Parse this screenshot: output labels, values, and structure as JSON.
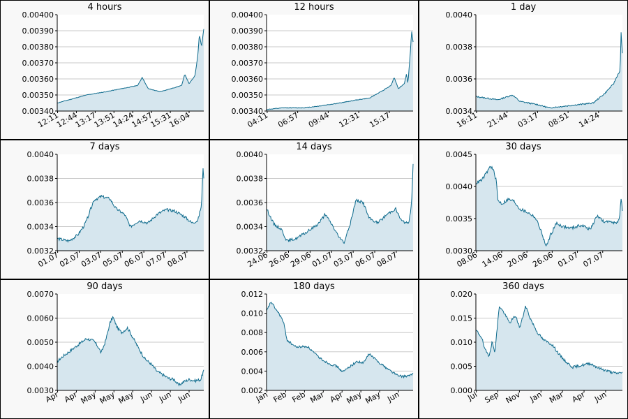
{
  "colors": {
    "line": "#0d6a8c",
    "fill": "#d6e6ee",
    "grid": "#c8c8c8",
    "frame_bg": "#f8f8f8"
  },
  "chart_data": [
    {
      "type": "area",
      "title": "4 hours",
      "ylim": [
        0.0034,
        0.004
      ],
      "yticks": [
        "0.00340",
        "0.00350",
        "0.00360",
        "0.00370",
        "0.00380",
        "0.00390",
        "0.00400"
      ],
      "xticks": [
        "12:11",
        "12:44",
        "13:17",
        "13:51",
        "14:24",
        "14:57",
        "15:31",
        "16:04"
      ],
      "anchors": [
        [
          0,
          0.00345
        ],
        [
          0.08,
          0.00347
        ],
        [
          0.2,
          0.0035
        ],
        [
          0.33,
          0.00352
        ],
        [
          0.5,
          0.00355
        ],
        [
          0.55,
          0.00356
        ],
        [
          0.58,
          0.00361
        ],
        [
          0.62,
          0.00354
        ],
        [
          0.7,
          0.00352
        ],
        [
          0.78,
          0.00354
        ],
        [
          0.85,
          0.00356
        ],
        [
          0.87,
          0.00363
        ],
        [
          0.9,
          0.00357
        ],
        [
          0.94,
          0.00362
        ],
        [
          0.96,
          0.00375
        ],
        [
          0.97,
          0.00388
        ],
        [
          0.985,
          0.0038
        ],
        [
          1,
          0.00391
        ]
      ],
      "noise": 1.5e-06,
      "seed": 11
    },
    {
      "type": "area",
      "title": "12 hours",
      "ylim": [
        0.0034,
        0.004
      ],
      "yticks": [
        "0.00340",
        "0.00350",
        "0.00360",
        "0.00370",
        "0.00380",
        "0.00390",
        "0.00400"
      ],
      "xticks": [
        "04:11",
        "06:57",
        "09:44",
        "12:31",
        "15:17"
      ],
      "anchors": [
        [
          0,
          0.00341
        ],
        [
          0.12,
          0.00342
        ],
        [
          0.25,
          0.00342
        ],
        [
          0.35,
          0.00343
        ],
        [
          0.5,
          0.00345
        ],
        [
          0.62,
          0.00347
        ],
        [
          0.7,
          0.00348
        ],
        [
          0.78,
          0.00352
        ],
        [
          0.85,
          0.00356
        ],
        [
          0.87,
          0.00361
        ],
        [
          0.9,
          0.00354
        ],
        [
          0.94,
          0.00357
        ],
        [
          0.955,
          0.00363
        ],
        [
          0.965,
          0.00357
        ],
        [
          0.98,
          0.00375
        ],
        [
          0.99,
          0.0039
        ],
        [
          1,
          0.00383
        ]
      ],
      "noise": 2e-06,
      "seed": 12
    },
    {
      "type": "area",
      "title": "1 day",
      "ylim": [
        0.0034,
        0.004
      ],
      "yticks": [
        "0.0034",
        "0.0036",
        "0.0038",
        "0.0040"
      ],
      "xticks": [
        "16:11",
        "21:44",
        "03:17",
        "08:51",
        "14:24"
      ],
      "anchors": [
        [
          0,
          0.00349
        ],
        [
          0.15,
          0.00347
        ],
        [
          0.25,
          0.0035
        ],
        [
          0.3,
          0.00346
        ],
        [
          0.42,
          0.00344
        ],
        [
          0.5,
          0.00342
        ],
        [
          0.6,
          0.00343
        ],
        [
          0.7,
          0.00344
        ],
        [
          0.8,
          0.00345
        ],
        [
          0.88,
          0.00351
        ],
        [
          0.94,
          0.00357
        ],
        [
          0.97,
          0.00363
        ],
        [
          0.985,
          0.00365
        ],
        [
          0.99,
          0.0039
        ],
        [
          1,
          0.00376
        ]
      ],
      "noise": 4e-06,
      "seed": 13
    },
    {
      "type": "area",
      "title": "7 days",
      "ylim": [
        0.0032,
        0.004
      ],
      "yticks": [
        "0.0032",
        "0.0034",
        "0.0036",
        "0.0038",
        "0.0040"
      ],
      "xticks": [
        "01.07",
        "02.07",
        "03.07",
        "05.07",
        "06.07",
        "07.07",
        "08.07"
      ],
      "anchors": [
        [
          0,
          0.0033
        ],
        [
          0.08,
          0.00328
        ],
        [
          0.14,
          0.00333
        ],
        [
          0.18,
          0.0034
        ],
        [
          0.2,
          0.00345
        ],
        [
          0.25,
          0.00362
        ],
        [
          0.3,
          0.00365
        ],
        [
          0.36,
          0.00363
        ],
        [
          0.4,
          0.00355
        ],
        [
          0.46,
          0.0035
        ],
        [
          0.5,
          0.0034
        ],
        [
          0.56,
          0.00345
        ],
        [
          0.62,
          0.00343
        ],
        [
          0.68,
          0.0035
        ],
        [
          0.74,
          0.00354
        ],
        [
          0.8,
          0.00353
        ],
        [
          0.86,
          0.00349
        ],
        [
          0.92,
          0.00343
        ],
        [
          0.96,
          0.00345
        ],
        [
          0.985,
          0.00358
        ],
        [
          0.995,
          0.0039
        ],
        [
          1,
          0.0038
        ]
      ],
      "noise": 1.2e-05,
      "seed": 14
    },
    {
      "type": "area",
      "title": "14 days",
      "ylim": [
        0.0032,
        0.004
      ],
      "yticks": [
        "0.0032",
        "0.0034",
        "0.0036",
        "0.0038",
        "0.0040"
      ],
      "xticks": [
        "24.06",
        "26.06",
        "29.06",
        "01.07",
        "03.07",
        "06.07",
        "08.07"
      ],
      "anchors": [
        [
          0,
          0.00355
        ],
        [
          0.05,
          0.00342
        ],
        [
          0.1,
          0.00338
        ],
        [
          0.14,
          0.00328
        ],
        [
          0.2,
          0.0033
        ],
        [
          0.27,
          0.00335
        ],
        [
          0.35,
          0.00342
        ],
        [
          0.4,
          0.0035
        ],
        [
          0.44,
          0.00343
        ],
        [
          0.5,
          0.0033
        ],
        [
          0.53,
          0.00327
        ],
        [
          0.57,
          0.00342
        ],
        [
          0.61,
          0.00362
        ],
        [
          0.66,
          0.0036
        ],
        [
          0.7,
          0.00347
        ],
        [
          0.76,
          0.00343
        ],
        [
          0.82,
          0.0035
        ],
        [
          0.88,
          0.00355
        ],
        [
          0.92,
          0.00345
        ],
        [
          0.97,
          0.00342
        ],
        [
          0.99,
          0.0036
        ],
        [
          1,
          0.00392
        ]
      ],
      "noise": 1.2e-05,
      "seed": 15
    },
    {
      "type": "area",
      "title": "30 days",
      "ylim": [
        0.003,
        0.0045
      ],
      "yticks": [
        "0.0030",
        "0.0035",
        "0.0040",
        "0.0045"
      ],
      "xticks": [
        "08.06",
        "14.06",
        "20.06",
        "26.06",
        "01.07",
        "07.07"
      ],
      "anchors": [
        [
          0,
          0.00405
        ],
        [
          0.04,
          0.0041
        ],
        [
          0.07,
          0.0042
        ],
        [
          0.1,
          0.00432
        ],
        [
          0.12,
          0.00425
        ],
        [
          0.14,
          0.00408
        ],
        [
          0.15,
          0.00378
        ],
        [
          0.18,
          0.00373
        ],
        [
          0.22,
          0.0038
        ],
        [
          0.26,
          0.00377
        ],
        [
          0.3,
          0.00365
        ],
        [
          0.35,
          0.0036
        ],
        [
          0.4,
          0.00353
        ],
        [
          0.43,
          0.0034
        ],
        [
          0.46,
          0.0032
        ],
        [
          0.48,
          0.00306
        ],
        [
          0.51,
          0.00325
        ],
        [
          0.55,
          0.00343
        ],
        [
          0.6,
          0.00337
        ],
        [
          0.65,
          0.00335
        ],
        [
          0.72,
          0.0034
        ],
        [
          0.78,
          0.00333
        ],
        [
          0.83,
          0.00355
        ],
        [
          0.88,
          0.00343
        ],
        [
          0.92,
          0.00347
        ],
        [
          0.96,
          0.00342
        ],
        [
          0.98,
          0.00348
        ],
        [
          0.99,
          0.00385
        ],
        [
          1,
          0.00362
        ]
      ],
      "noise": 2.5e-05,
      "seed": 16
    },
    {
      "type": "area",
      "title": "90 days",
      "ylim": [
        0.003,
        0.007
      ],
      "yticks": [
        "0.0030",
        "0.0040",
        "0.0050",
        "0.0060",
        "0.0070"
      ],
      "xticks": [
        "Apr",
        "Apr",
        "May",
        "May",
        "May",
        "Jun",
        "Jun",
        "Jun"
      ],
      "anchors": [
        [
          0,
          0.0042
        ],
        [
          0.04,
          0.00442
        ],
        [
          0.08,
          0.0046
        ],
        [
          0.14,
          0.00488
        ],
        [
          0.2,
          0.00515
        ],
        [
          0.25,
          0.00505
        ],
        [
          0.28,
          0.0048
        ],
        [
          0.3,
          0.00455
        ],
        [
          0.33,
          0.00505
        ],
        [
          0.36,
          0.0058
        ],
        [
          0.38,
          0.00605
        ],
        [
          0.41,
          0.0056
        ],
        [
          0.44,
          0.0054
        ],
        [
          0.48,
          0.0056
        ],
        [
          0.52,
          0.00515
        ],
        [
          0.56,
          0.0047
        ],
        [
          0.6,
          0.0043
        ],
        [
          0.64,
          0.0041
        ],
        [
          0.68,
          0.0038
        ],
        [
          0.72,
          0.00365
        ],
        [
          0.76,
          0.0035
        ],
        [
          0.8,
          0.00345
        ],
        [
          0.83,
          0.0032
        ],
        [
          0.86,
          0.00335
        ],
        [
          0.9,
          0.00345
        ],
        [
          0.94,
          0.0034
        ],
        [
          0.98,
          0.00345
        ],
        [
          1,
          0.00385
        ]
      ],
      "noise": 6e-05,
      "seed": 17
    },
    {
      "type": "area",
      "title": "180 days",
      "ylim": [
        0.002,
        0.012
      ],
      "yticks": [
        "0.002",
        "0.004",
        "0.006",
        "0.008",
        "0.010",
        "0.012"
      ],
      "xticks": [
        "Jan",
        "Feb",
        "Feb",
        "Mar",
        "Apr",
        "May",
        "May",
        "Jun"
      ],
      "anchors": [
        [
          0,
          0.0102
        ],
        [
          0.03,
          0.0112
        ],
        [
          0.06,
          0.0105
        ],
        [
          0.1,
          0.0096
        ],
        [
          0.12,
          0.0088
        ],
        [
          0.14,
          0.0072
        ],
        [
          0.2,
          0.0065
        ],
        [
          0.28,
          0.00655
        ],
        [
          0.33,
          0.0058
        ],
        [
          0.36,
          0.0054
        ],
        [
          0.4,
          0.005
        ],
        [
          0.44,
          0.0047
        ],
        [
          0.48,
          0.0045
        ],
        [
          0.52,
          0.0039
        ],
        [
          0.56,
          0.0044
        ],
        [
          0.62,
          0.005
        ],
        [
          0.66,
          0.0048
        ],
        [
          0.7,
          0.0058
        ],
        [
          0.76,
          0.005
        ],
        [
          0.82,
          0.0043
        ],
        [
          0.86,
          0.0039
        ],
        [
          0.9,
          0.0035
        ],
        [
          0.94,
          0.00345
        ],
        [
          0.98,
          0.00352
        ],
        [
          1,
          0.0038
        ]
      ],
      "noise": 0.00012,
      "seed": 18
    },
    {
      "type": "area",
      "title": "360 days",
      "ylim": [
        0,
        0.02
      ],
      "yticks": [
        "0.000",
        "0.005",
        "0.010",
        "0.015",
        "0.020"
      ],
      "xticks": [
        "Jul",
        "Sep",
        "Nov",
        "Jan",
        "Mar",
        "Apr",
        "Jun"
      ],
      "anchors": [
        [
          0,
          0.0125
        ],
        [
          0.04,
          0.011
        ],
        [
          0.06,
          0.0085
        ],
        [
          0.09,
          0.0072
        ],
        [
          0.11,
          0.01
        ],
        [
          0.13,
          0.008
        ],
        [
          0.16,
          0.0175
        ],
        [
          0.19,
          0.0162
        ],
        [
          0.23,
          0.014
        ],
        [
          0.27,
          0.0155
        ],
        [
          0.3,
          0.013
        ],
        [
          0.34,
          0.0175
        ],
        [
          0.37,
          0.015
        ],
        [
          0.42,
          0.012
        ],
        [
          0.46,
          0.0105
        ],
        [
          0.52,
          0.0095
        ],
        [
          0.58,
          0.007
        ],
        [
          0.62,
          0.0058
        ],
        [
          0.66,
          0.0048
        ],
        [
          0.72,
          0.0052
        ],
        [
          0.78,
          0.0056
        ],
        [
          0.84,
          0.0046
        ],
        [
          0.9,
          0.004
        ],
        [
          0.96,
          0.0035
        ],
        [
          1,
          0.0038
        ]
      ],
      "noise": 0.00028,
      "seed": 19
    }
  ]
}
